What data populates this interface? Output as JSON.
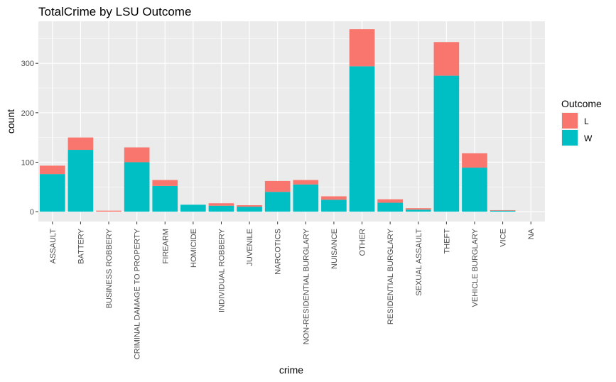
{
  "chart_data": {
    "type": "bar",
    "stacked": true,
    "title": "TotalCrime by LSU Outcome",
    "xlabel": "crime",
    "ylabel": "count",
    "ylim": [
      -20,
      385
    ],
    "yticks": [
      0,
      100,
      200,
      300
    ],
    "grid": true,
    "legend_position": "right",
    "legend_title": "Outcome",
    "categories": [
      "ASSAULT",
      "BATTERY",
      "BUSINESS ROBBERY",
      "CRIMINAL DAMAGE TO PROPERTY",
      "FIREARM",
      "HOMICIDE",
      "INDIVIDUAL ROBBERY",
      "JUVENILE",
      "NARCOTICS",
      "NON-RESIDENTIAL BURGLARY",
      "NUISANCE",
      "OTHER",
      "RESIDENTIAL BURGLARY",
      "SEXUAL ASSAULT",
      "THEFT",
      "VEHICLE BURGLARY",
      "VICE",
      "NA"
    ],
    "series": [
      {
        "name": "W",
        "color": "#00BFC4",
        "values": [
          76,
          125,
          0,
          100,
          52,
          14,
          12,
          10,
          40,
          55,
          24,
          294,
          18,
          4,
          275,
          89,
          2,
          0
        ]
      },
      {
        "name": "L",
        "color": "#F8766D",
        "values": [
          17,
          25,
          2,
          30,
          12,
          0,
          5,
          3,
          22,
          9,
          7,
          75,
          7,
          3,
          68,
          29,
          1,
          0
        ]
      }
    ]
  }
}
